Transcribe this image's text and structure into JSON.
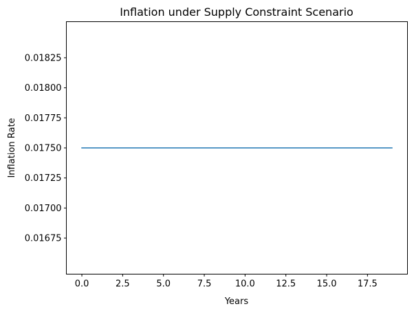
{
  "chart_data": {
    "type": "line",
    "title": "Inflation under Supply Constraint Scenario",
    "xlabel": "Years",
    "ylabel": "Inflation Rate",
    "x": [
      0,
      1,
      2,
      3,
      4,
      5,
      6,
      7,
      8,
      9,
      10,
      11,
      12,
      13,
      14,
      15,
      16,
      17,
      18,
      19
    ],
    "series": [
      {
        "values": [
          0.0175,
          0.0175,
          0.0175,
          0.0175,
          0.0175,
          0.0175,
          0.0175,
          0.0175,
          0.0175,
          0.0175,
          0.0175,
          0.0175,
          0.0175,
          0.0175,
          0.0175,
          0.0175,
          0.0175,
          0.0175,
          0.0175,
          0.0175
        ],
        "color": "#1f77b4"
      }
    ],
    "xlim": [
      -0.95,
      19.95
    ],
    "ylim": [
      0.01645,
      0.01855
    ],
    "xticks": [
      0,
      2.5,
      5,
      7.5,
      10,
      12.5,
      15,
      17.5
    ],
    "xtick_labels": [
      "0.0",
      "2.5",
      "5.0",
      "7.5",
      "10.0",
      "12.5",
      "15.0",
      "17.5"
    ],
    "yticks": [
      0.01675,
      0.017,
      0.01725,
      0.0175,
      0.01775,
      0.018,
      0.01825
    ],
    "ytick_labels": [
      "0.01675",
      "0.01700",
      "0.01725",
      "0.01750",
      "0.01775",
      "0.01800",
      "0.01825"
    ],
    "grid": false,
    "legend": false
  }
}
